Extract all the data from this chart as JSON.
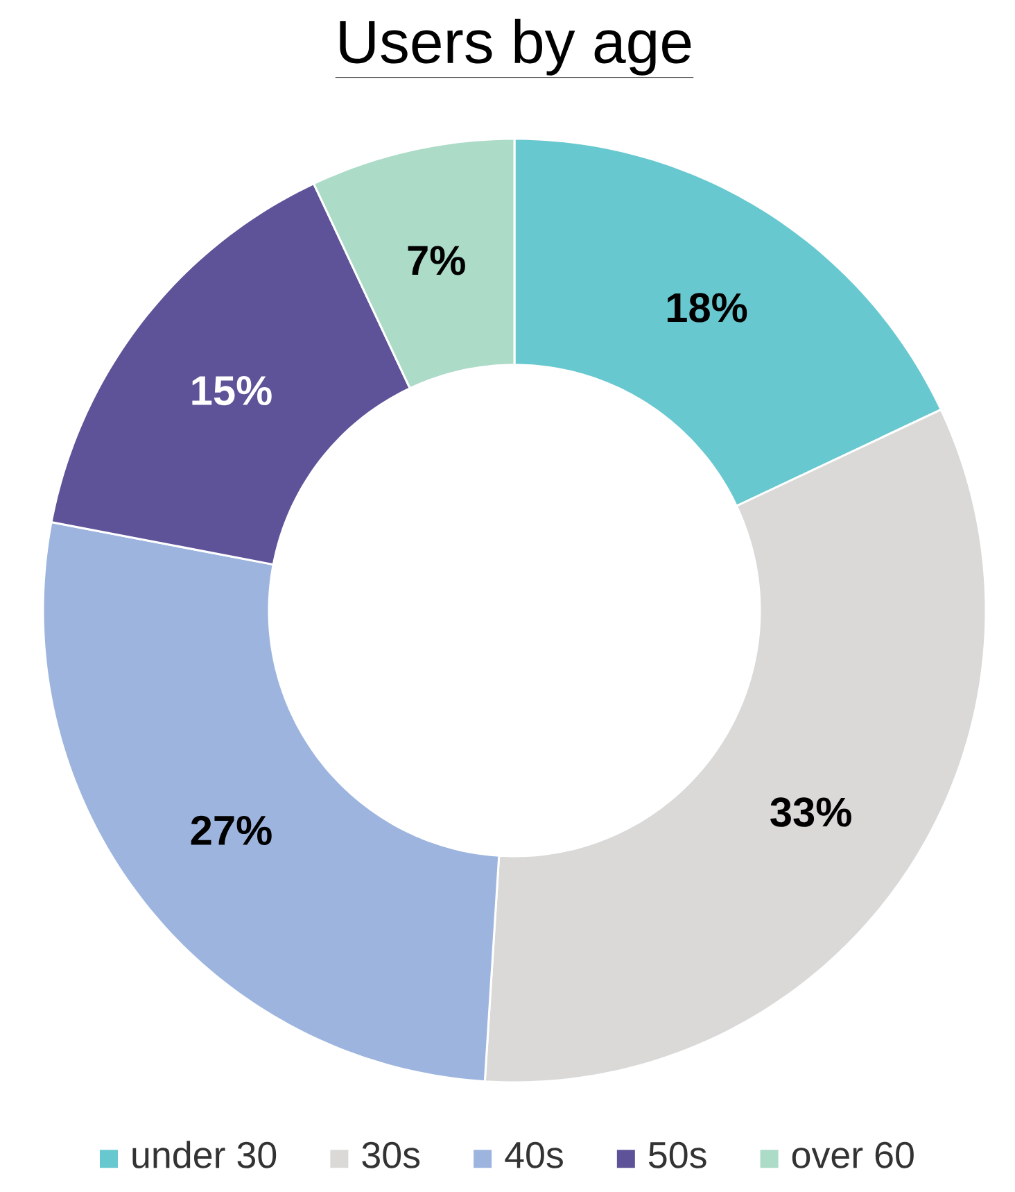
{
  "chart_data": {
    "type": "donut",
    "title": "Users by age",
    "categories": [
      "under 30",
      "30s",
      "40s",
      "50s",
      "over 60"
    ],
    "values": [
      18,
      33,
      27,
      15,
      7
    ],
    "value_labels": [
      "18%",
      "33%",
      "27%",
      "15%",
      "7%"
    ],
    "colors": [
      "#68c8d0",
      "#dad9d8",
      "#9db5de",
      "#5e5398",
      "#acdbc8"
    ],
    "legend": "bottom"
  }
}
